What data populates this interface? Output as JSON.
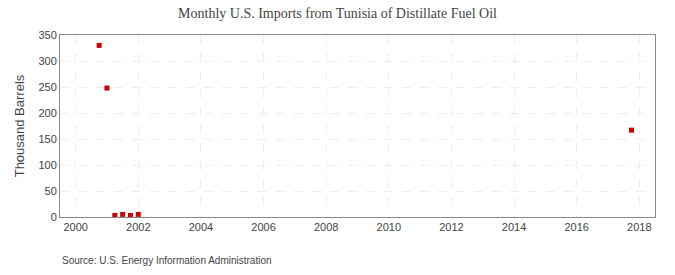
{
  "chart_data": {
    "type": "scatter",
    "title": "Monthly U.S. Imports from Tunisia of Distillate Fuel Oil",
    "ylabel": "Thousand Barrels",
    "annotations": [
      "Source: U.S. Energy Information Administration"
    ],
    "x": [
      2000.75,
      2001.0,
      2001.25,
      2001.5,
      2001.75,
      2002.0,
      2017.75
    ],
    "values": [
      330,
      248,
      3,
      5,
      3,
      5,
      167
    ],
    "color": "#cc0000",
    "marker": "square",
    "xlim": [
      1999.5,
      2018.5
    ],
    "ylim": [
      0,
      350
    ],
    "xticks": [
      2000,
      2002,
      2004,
      2006,
      2008,
      2010,
      2012,
      2014,
      2016,
      2018
    ],
    "yticks": [
      0,
      50,
      100,
      150,
      200,
      250,
      300,
      350
    ],
    "grid": true
  }
}
